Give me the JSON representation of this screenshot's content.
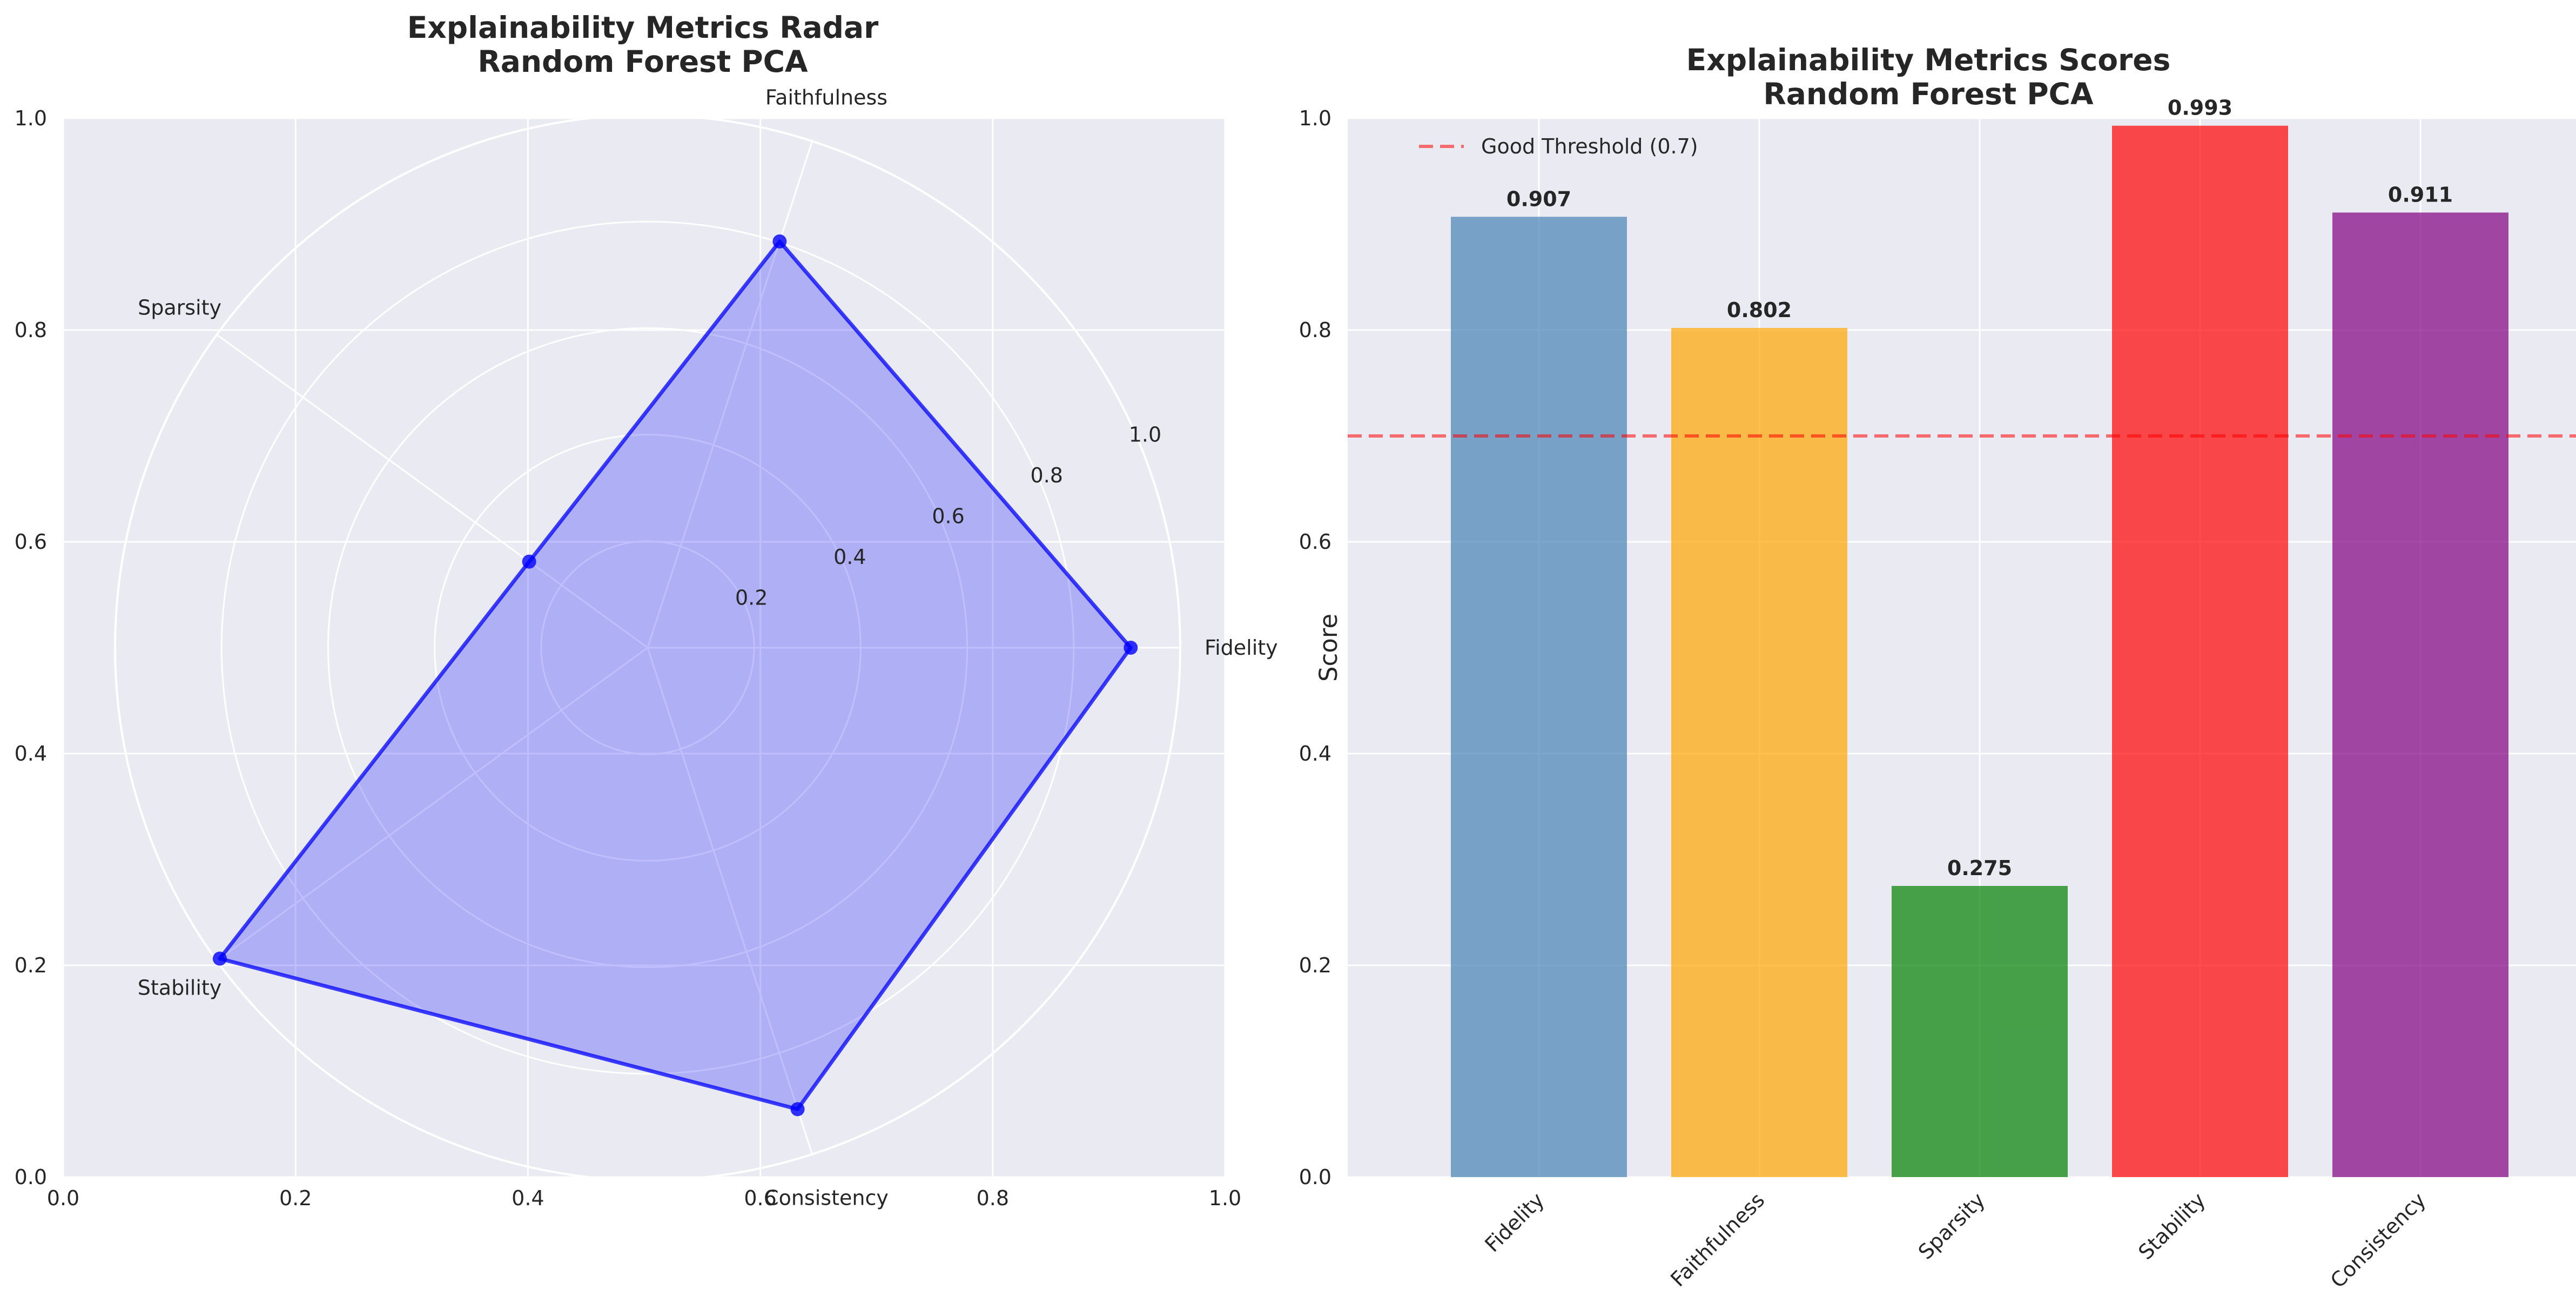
{
  "chart_data": [
    {
      "type": "radar",
      "title": "Explainability Metrics Radar\nRandom Forest PCA",
      "categories": [
        "Fidelity",
        "Faithfulness",
        "Sparsity",
        "Stability",
        "Consistency"
      ],
      "values": [
        0.907,
        0.802,
        0.275,
        0.993,
        0.911
      ],
      "rlim": [
        0,
        1
      ],
      "radial_ticks": [
        "0.2",
        "0.4",
        "0.6",
        "0.8",
        "1.0"
      ],
      "frame_ticks": {
        "x": [
          "0.0",
          "0.2",
          "0.4",
          "0.6",
          "0.8",
          "1.0"
        ],
        "y": [
          "0.0",
          "0.2",
          "0.4",
          "0.6",
          "0.8",
          "1.0"
        ]
      },
      "color": "#0000ff"
    },
    {
      "type": "bar",
      "title": "Explainability Metrics Scores\nRandom Forest PCA",
      "categories": [
        "Fidelity",
        "Faithfulness",
        "Sparsity",
        "Stability",
        "Consistency"
      ],
      "values": [
        0.907,
        0.802,
        0.275,
        0.993,
        0.911
      ],
      "value_labels": [
        "0.907",
        "0.802",
        "0.275",
        "0.993",
        "0.911"
      ],
      "colors": [
        "#4682b4",
        "#ffa500",
        "#008000",
        "#ff0000",
        "#800080"
      ],
      "xlabel": "",
      "ylabel": "Score",
      "ylim": [
        0,
        1
      ],
      "yticks": [
        "0.0",
        "0.2",
        "0.4",
        "0.6",
        "0.8",
        "1.0"
      ],
      "threshold": {
        "value": 0.7,
        "label": "Good Threshold (0.7)",
        "color": "#ff0000"
      },
      "legend_position": "upper-left"
    }
  ]
}
